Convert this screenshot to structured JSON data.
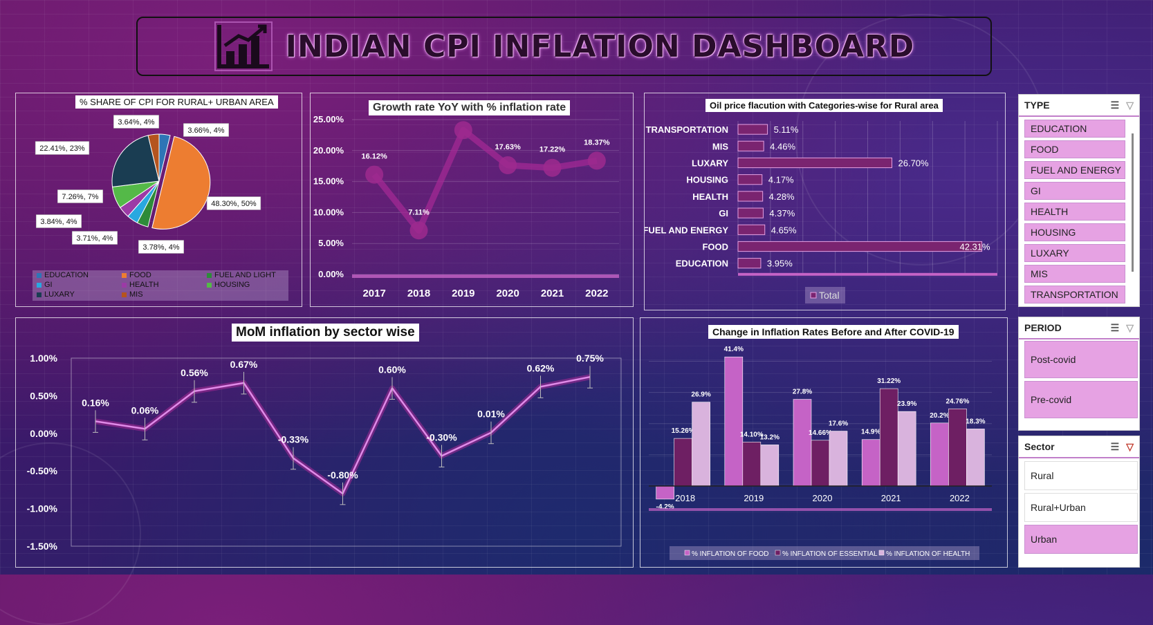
{
  "dashboard": {
    "title": "INDIAN CPI INFLATION DASHBOARD"
  },
  "colors": {
    "accent": "#c563c6",
    "dark_bar": "#6e1f63",
    "light_bar": "#d9b3dd",
    "slicer_selected": "#e6a2e3"
  },
  "chart_data": [
    {
      "id": "pie",
      "type": "pie",
      "title": "% SHARE OF CPI FOR RURAL+ URBAN AREA",
      "slices": [
        {
          "name": "EDUCATION",
          "value": 3.66,
          "label": "3.66%, 4%",
          "color": "#2e75b6"
        },
        {
          "name": "FOOD",
          "value": 48.3,
          "label": "48.30%, 50%",
          "color": "#ed7d31"
        },
        {
          "name": "FUEL AND LIGHT",
          "value": 3.78,
          "label": "3.78%, 4%",
          "color": "#2e8b3a"
        },
        {
          "name": "GI",
          "value": 3.71,
          "label": "3.71%, 4%",
          "color": "#29a8e0"
        },
        {
          "name": "HEALTH",
          "value": 3.84,
          "label": "3.84%, 4%",
          "color": "#9c3aa6"
        },
        {
          "name": "HOUSING",
          "value": 7.26,
          "label": "7.26%, 7%",
          "color": "#54b948"
        },
        {
          "name": "LUXARY",
          "value": 22.41,
          "label": "22.41%, 23%",
          "color": "#1a3d52"
        },
        {
          "name": "MIS",
          "value": 3.64,
          "label": "3.64%, 4%",
          "color": "#b5541e"
        }
      ]
    },
    {
      "id": "yoy",
      "type": "line",
      "title": "Growth rate YoY with % inflation rate",
      "categories": [
        "2017",
        "2018",
        "2019",
        "2020",
        "2021",
        "2022"
      ],
      "values": [
        16.12,
        7.11,
        23.3,
        17.63,
        17.22,
        18.37
      ],
      "data_labels": [
        "16.12%",
        "7.11%",
        "",
        "17.63%",
        "17.22%",
        "18.37%"
      ],
      "yticks": [
        "0.00%",
        "5.00%",
        "10.00%",
        "15.00%",
        "20.00%",
        "25.00%"
      ],
      "ylim": [
        0,
        25
      ]
    },
    {
      "id": "oil",
      "type": "bar",
      "title": "Oil price flacution with Categories-wise for Rural area",
      "categories": [
        "TRANSPORTATION",
        "MIS",
        "LUXARY",
        "HOUSING",
        "HEALTH",
        "GI",
        "FUEL AND ENERGY",
        "FOOD",
        "EDUCATION"
      ],
      "values": [
        5.11,
        4.46,
        26.7,
        4.17,
        4.28,
        4.37,
        4.65,
        42.31,
        3.95
      ],
      "data_labels": [
        "5.11%",
        "4.46%",
        "26.70%",
        "4.17%",
        "4.28%",
        "4.37%",
        "4.65%",
        "42.31%",
        "3.95%"
      ],
      "legend": "Total",
      "xlim": [
        0,
        45
      ]
    },
    {
      "id": "mom",
      "type": "line",
      "title": "MoM inflation by sector wise",
      "values": [
        0.16,
        0.06,
        0.56,
        0.67,
        -0.33,
        -0.8,
        0.6,
        -0.3,
        0.01,
        0.62,
        0.75
      ],
      "data_labels": [
        "0.16%",
        "0.06%",
        "0.56%",
        "0.67%",
        "-0.33%",
        "-0.80%",
        "0.60%",
        "-0.30%",
        "0.01%",
        "0.62%",
        "0.75%"
      ],
      "yticks": [
        "1.00%",
        "0.50%",
        "0.00%",
        "-0.50%",
        "-1.00%",
        "-1.50%"
      ],
      "ylim": [
        -1.5,
        1.0
      ]
    },
    {
      "id": "covid",
      "type": "bar",
      "title": "Change in Inflation Rates Before and After COVID-19",
      "categories": [
        "2018",
        "2019",
        "2020",
        "2021",
        "2022"
      ],
      "series": [
        {
          "name": "% INFLATION OF FOOD",
          "values": [
            -4.2,
            41.4,
            27.8,
            14.9,
            20.2
          ],
          "labels": [
            "-4.2%",
            "41.4%",
            "27.8%",
            "14.9%",
            "20.2%"
          ],
          "color": "#c563c6"
        },
        {
          "name": "% INFLATION OF ESSENTIAL",
          "values": [
            15.26,
            14.1,
            14.66,
            31.22,
            24.76
          ],
          "labels": [
            "15.26%",
            "14.10%",
            "14.66%",
            "31.22%",
            "24.76%"
          ],
          "color": "#6e1f63"
        },
        {
          "name": "% INFLATION OF HEALTH",
          "values": [
            26.9,
            13.2,
            17.6,
            23.9,
            18.3
          ],
          "labels": [
            "26.9%",
            "13.2%",
            "17.6%",
            "23.9%",
            "18.3%"
          ],
          "color": "#d9b3dd"
        }
      ],
      "ylim": [
        -6,
        45
      ]
    }
  ],
  "slicers": {
    "type": {
      "title": "TYPE",
      "items": [
        "EDUCATION",
        "FOOD",
        "FUEL AND ENERGY",
        "GI",
        "HEALTH",
        "HOUSING",
        "LUXARY",
        "MIS",
        "TRANSPORTATION"
      ]
    },
    "period": {
      "title": "PERIOD",
      "items": [
        "Post-covid",
        "Pre-covid"
      ]
    },
    "sector": {
      "title": "Sector",
      "items": [
        "Rural",
        "Rural+Urban",
        "Urban"
      ],
      "selected": "Urban"
    }
  }
}
